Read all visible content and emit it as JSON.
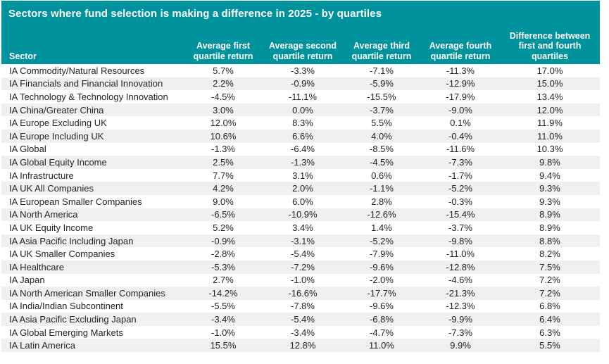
{
  "colors": {
    "header_bg": "#00929D",
    "alt_row_bg": "#F0F0F0",
    "header_text": "#FFFFFF",
    "body_text": "#242424"
  },
  "chart_data": {
    "type": "table",
    "title": "Sectors where fund selection is making a difference in 2025 - by quartiles",
    "columns": [
      "Sector",
      "Average first quartile return",
      "Average second quartile return",
      "Average third quartile return",
      "Average fourth quartile return",
      "Difference between first and fourth quartiles"
    ],
    "rows": [
      [
        "IA Commodity/Natural Resources",
        "5.7%",
        "-3.3%",
        "-7.1%",
        "-11.3%",
        "17.0%"
      ],
      [
        "IA Financials and Financial Innovation",
        "2.2%",
        "-0.9%",
        "-5.9%",
        "-12.9%",
        "15.0%"
      ],
      [
        "IA Technology & Technology Innovation",
        "-4.5%",
        "-11.1%",
        "-15.5%",
        "-17.9%",
        "13.4%"
      ],
      [
        "IA China/Greater China",
        "3.0%",
        "0.0%",
        "-3.7%",
        "-9.0%",
        "12.0%"
      ],
      [
        "IA Europe Excluding UK",
        "12.0%",
        "8.3%",
        "5.5%",
        "0.1%",
        "11.9%"
      ],
      [
        "IA Europe Including UK",
        "10.6%",
        "6.6%",
        "4.0%",
        "-0.4%",
        "11.0%"
      ],
      [
        "IA Global",
        "-1.3%",
        "-6.4%",
        "-8.5%",
        "-11.6%",
        "10.3%"
      ],
      [
        "IA Global Equity Income",
        "2.5%",
        "-1.3%",
        "-4.5%",
        "-7.3%",
        "9.8%"
      ],
      [
        "IA Infrastructure",
        "7.7%",
        "3.1%",
        "0.6%",
        "-1.7%",
        "9.4%"
      ],
      [
        "IA UK All Companies",
        "4.2%",
        "2.0%",
        "-1.1%",
        "-5.2%",
        "9.3%"
      ],
      [
        "IA European Smaller Companies",
        "9.0%",
        "6.0%",
        "2.8%",
        "-0.3%",
        "9.3%"
      ],
      [
        "IA North America",
        "-6.5%",
        "-10.9%",
        "-12.6%",
        "-15.4%",
        "8.9%"
      ],
      [
        "IA UK Equity Income",
        "5.2%",
        "3.4%",
        "1.4%",
        "-3.7%",
        "8.9%"
      ],
      [
        "IA Asia Pacific Including Japan",
        "-0.9%",
        "-3.1%",
        "-5.2%",
        "-9.8%",
        "8.8%"
      ],
      [
        "IA UK Smaller Companies",
        "-2.8%",
        "-5.4%",
        "-7.9%",
        "-11.0%",
        "8.2%"
      ],
      [
        "IA Healthcare",
        "-5.3%",
        "-7.2%",
        "-9.6%",
        "-12.8%",
        "7.5%"
      ],
      [
        "IA Japan",
        "2.7%",
        "-1.0%",
        "-2.0%",
        "-4.6%",
        "7.2%"
      ],
      [
        "IA North American Smaller Companies",
        "-14.2%",
        "-16.6%",
        "-17.7%",
        "-21.3%",
        "7.2%"
      ],
      [
        "IA India/Indian Subcontinent",
        "-5.5%",
        "-7.8%",
        "-9.6%",
        "-12.3%",
        "6.8%"
      ],
      [
        "IA Asia Pacific Excluding Japan",
        "-3.4%",
        "-5.4%",
        "-6.8%",
        "-9.9%",
        "6.4%"
      ],
      [
        "IA Global Emerging Markets",
        "-1.0%",
        "-3.4%",
        "-4.7%",
        "-7.3%",
        "6.3%"
      ],
      [
        "IA Latin America",
        "15.5%",
        "12.8%",
        "11.0%",
        "9.9%",
        "5.5%"
      ]
    ]
  }
}
